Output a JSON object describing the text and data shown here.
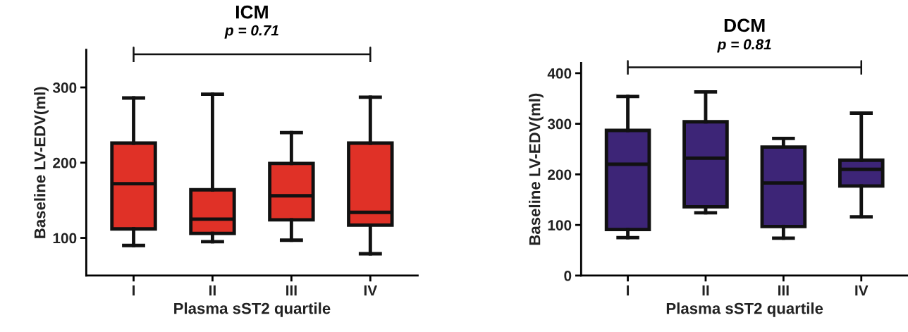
{
  "chart_data": [
    {
      "type": "box",
      "title": "ICM",
      "xlabel": "Plasma sST2 quartile",
      "ylabel": "Baseline LV-EDV(ml)",
      "categories": [
        "I",
        "II",
        "III",
        "IV"
      ],
      "color": "#e03127",
      "ylim": [
        50,
        350
      ],
      "yticks": [
        100,
        200,
        300
      ],
      "annotations": [
        "p = 0.71"
      ],
      "boxes": [
        {
          "low": 90,
          "q1": 112,
          "median": 172,
          "q3": 226,
          "high": 286
        },
        {
          "low": 95,
          "q1": 106,
          "median": 125,
          "q3": 164,
          "high": 291
        },
        {
          "low": 97,
          "q1": 124,
          "median": 156,
          "q3": 199,
          "high": 240
        },
        {
          "low": 79,
          "q1": 117,
          "median": 134,
          "q3": 226,
          "high": 287
        }
      ]
    },
    {
      "type": "box",
      "title": "DCM",
      "xlabel": "Plasma sST2 quartile",
      "ylabel": "Baseline LV-EDV(ml)",
      "categories": [
        "I",
        "II",
        "III",
        "IV"
      ],
      "color": "#3d2577",
      "ylim": [
        0,
        420
      ],
      "yticks": [
        0,
        100,
        200,
        300,
        400
      ],
      "annotations": [
        "p = 0.81"
      ],
      "boxes": [
        {
          "low": 75,
          "q1": 91,
          "median": 220,
          "q3": 287,
          "high": 354
        },
        {
          "low": 124,
          "q1": 136,
          "median": 232,
          "q3": 304,
          "high": 363
        },
        {
          "low": 74,
          "q1": 97,
          "median": 183,
          "q3": 254,
          "high": 271
        },
        {
          "low": 116,
          "q1": 177,
          "median": 210,
          "q3": 228,
          "high": 321
        }
      ]
    }
  ]
}
